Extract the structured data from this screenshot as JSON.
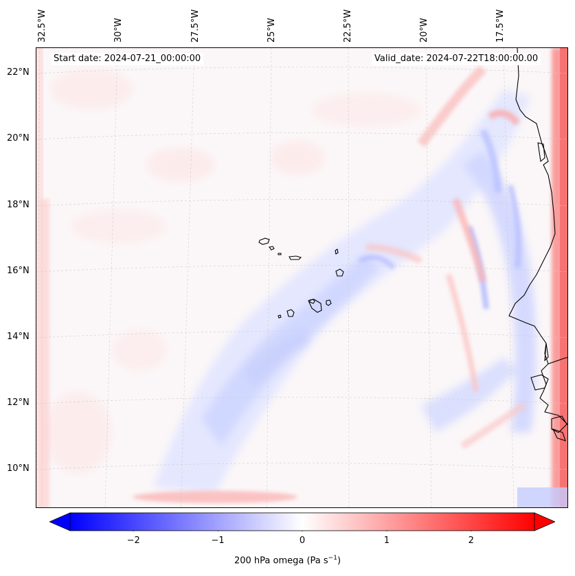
{
  "map": {
    "start_date_label": "Start date: 2024-07-21_00:00:00",
    "valid_date_label": "Valid_date: 2024-07-22T18:00:00.00",
    "longitude_labels": [
      "32.5°W",
      "30°W",
      "27.5°W",
      "25°W",
      "22.5°W",
      "20°W",
      "17.5°W"
    ],
    "latitude_labels": [
      "22°N",
      "20°N",
      "18°N",
      "16°N",
      "14°N",
      "12°N",
      "10°N"
    ],
    "variable": "200 hPa omega"
  },
  "colorbar": {
    "tick_labels": [
      "−2",
      "−1",
      "0",
      "1",
      "2"
    ],
    "ticks": [
      -2,
      -1,
      0,
      1,
      2
    ],
    "range": [
      -2.75,
      2.75
    ],
    "label_text": "200 hPa omega (Pa s",
    "label_exp": "−1",
    "label_close": ")",
    "colors": {
      "negative": "#0000ff",
      "zero": "#ffffff",
      "positive": "#ff0000"
    }
  }
}
